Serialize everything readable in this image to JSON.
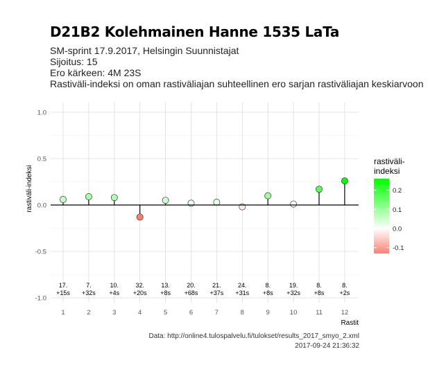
{
  "header": {
    "title": "D21B2 Kolehmainen Hanne 1535 LaTa",
    "subtitle_lines": [
      "SM-sprint 17.9.2017, Helsingin Suunnistajat",
      "Sijoitus: 15",
      "Ero kärkeen: 4M 23S",
      "Rastiväli-indeksi on oman rastiväliajan suhteellinen ero sarjan rastiväliajan keskiarvoon"
    ]
  },
  "caption": {
    "source": "Data: http://online4.tulospalvelu.fi/tulokset/results_2017_smyo_2.xml",
    "timestamp": "2017-09-24 21:36:32"
  },
  "chart_data": {
    "type": "lollipop",
    "xlabel": "Rastit",
    "ylabel": "rastiväli-indeksi",
    "ylim": [
      -1.0,
      1.0
    ],
    "yticks": [
      "1.0",
      "0.5",
      "0.0",
      "-0.5",
      "-1.0"
    ],
    "ytick_values": [
      1.0,
      0.5,
      0.0,
      -0.5,
      -1.0
    ],
    "grid": true,
    "legend": {
      "title_lines": [
        "rastiväli-",
        "indeksi"
      ],
      "tick_labels": [
        "0.2",
        "0.1",
        "0.0",
        "-0.1"
      ],
      "tick_values": [
        0.2,
        0.1,
        0.0,
        -0.1
      ],
      "range": [
        -0.13,
        0.26
      ],
      "colors": {
        "high": "#00ff00",
        "mid": "#ffffff",
        "low": "#fa8072"
      },
      "placement": "right"
    },
    "points": [
      {
        "x": 1,
        "y": 0.06,
        "rank": "17.",
        "diff": "+15s"
      },
      {
        "x": 2,
        "y": 0.09,
        "rank": "7.",
        "diff": "+32s"
      },
      {
        "x": 3,
        "y": 0.08,
        "rank": "10.",
        "diff": "+4s"
      },
      {
        "x": 4,
        "y": -0.13,
        "rank": "32.",
        "diff": "+20s"
      },
      {
        "x": 5,
        "y": 0.05,
        "rank": "13.",
        "diff": "+8s"
      },
      {
        "x": 6,
        "y": 0.02,
        "rank": "20.",
        "diff": "+68s"
      },
      {
        "x": 7,
        "y": 0.03,
        "rank": "21.",
        "diff": "+37s"
      },
      {
        "x": 8,
        "y": -0.02,
        "rank": "24.",
        "diff": "+31s"
      },
      {
        "x": 9,
        "y": 0.1,
        "rank": "8.",
        "diff": "+8s"
      },
      {
        "x": 10,
        "y": 0.01,
        "rank": "19.",
        "diff": "+32s"
      },
      {
        "x": 11,
        "y": 0.17,
        "rank": "8.",
        "diff": "+8s"
      },
      {
        "x": 12,
        "y": 0.26,
        "rank": "8.",
        "diff": "+2s"
      }
    ]
  }
}
